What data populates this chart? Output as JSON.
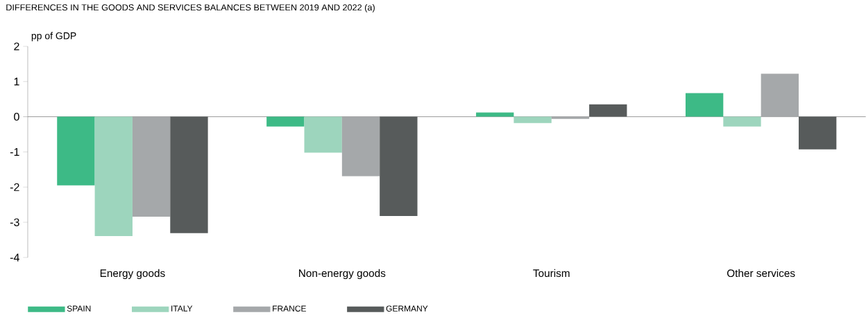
{
  "chart_data": {
    "type": "bar",
    "title": "DIFFERENCES IN THE GOODS AND SERVICES BALANCES BETWEEN 2019 AND 2022 (a)",
    "ylabel": "pp of GDP",
    "categories": [
      "Energy goods",
      "Non-energy goods",
      "Tourism",
      "Other services"
    ],
    "series": [
      {
        "name": "SPAIN",
        "color": "#3dba86",
        "values": [
          -1.95,
          -0.28,
          0.12,
          0.67
        ]
      },
      {
        "name": "ITALY",
        "color": "#9dd5bd",
        "values": [
          -3.39,
          -1.02,
          -0.18,
          -0.28
        ]
      },
      {
        "name": "FRANCE",
        "color": "#a5a8aa",
        "values": [
          -2.84,
          -1.69,
          -0.06,
          1.22
        ]
      },
      {
        "name": "GERMANY",
        "color": "#575b5b",
        "values": [
          -3.31,
          -2.82,
          0.35,
          -0.93
        ]
      }
    ],
    "ylim": [
      -4,
      2
    ],
    "yticks": [
      -4,
      -3,
      -2,
      -1,
      0,
      1,
      2
    ],
    "legend": "bottom"
  }
}
